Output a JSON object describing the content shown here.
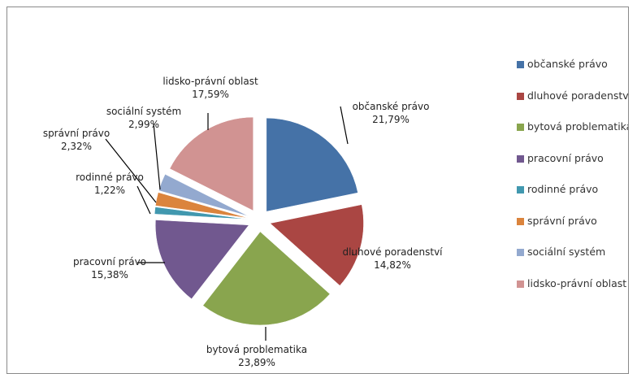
{
  "chart_data": {
    "type": "pie",
    "title": "",
    "exploded": true,
    "legend_position": "right",
    "categories": [
      "občanské právo",
      "dluhové poradenství",
      "bytová problematika",
      "pracovní právo",
      "rodinné právo",
      "správní právo",
      "sociální systém",
      "lidsko-právní oblast"
    ],
    "values": [
      21.79,
      14.82,
      23.89,
      15.38,
      1.22,
      2.32,
      2.99,
      17.59
    ],
    "value_labels": [
      "21,79%",
      "14,82%",
      "23,89%",
      "15,38%",
      "1,22%",
      "2,32%",
      "2,99%",
      "17,59%"
    ],
    "colors": [
      "#4572A7",
      "#AA4643",
      "#89A54E",
      "#71588F",
      "#4198AF",
      "#DB843D",
      "#93A9CF",
      "#D19392"
    ]
  }
}
